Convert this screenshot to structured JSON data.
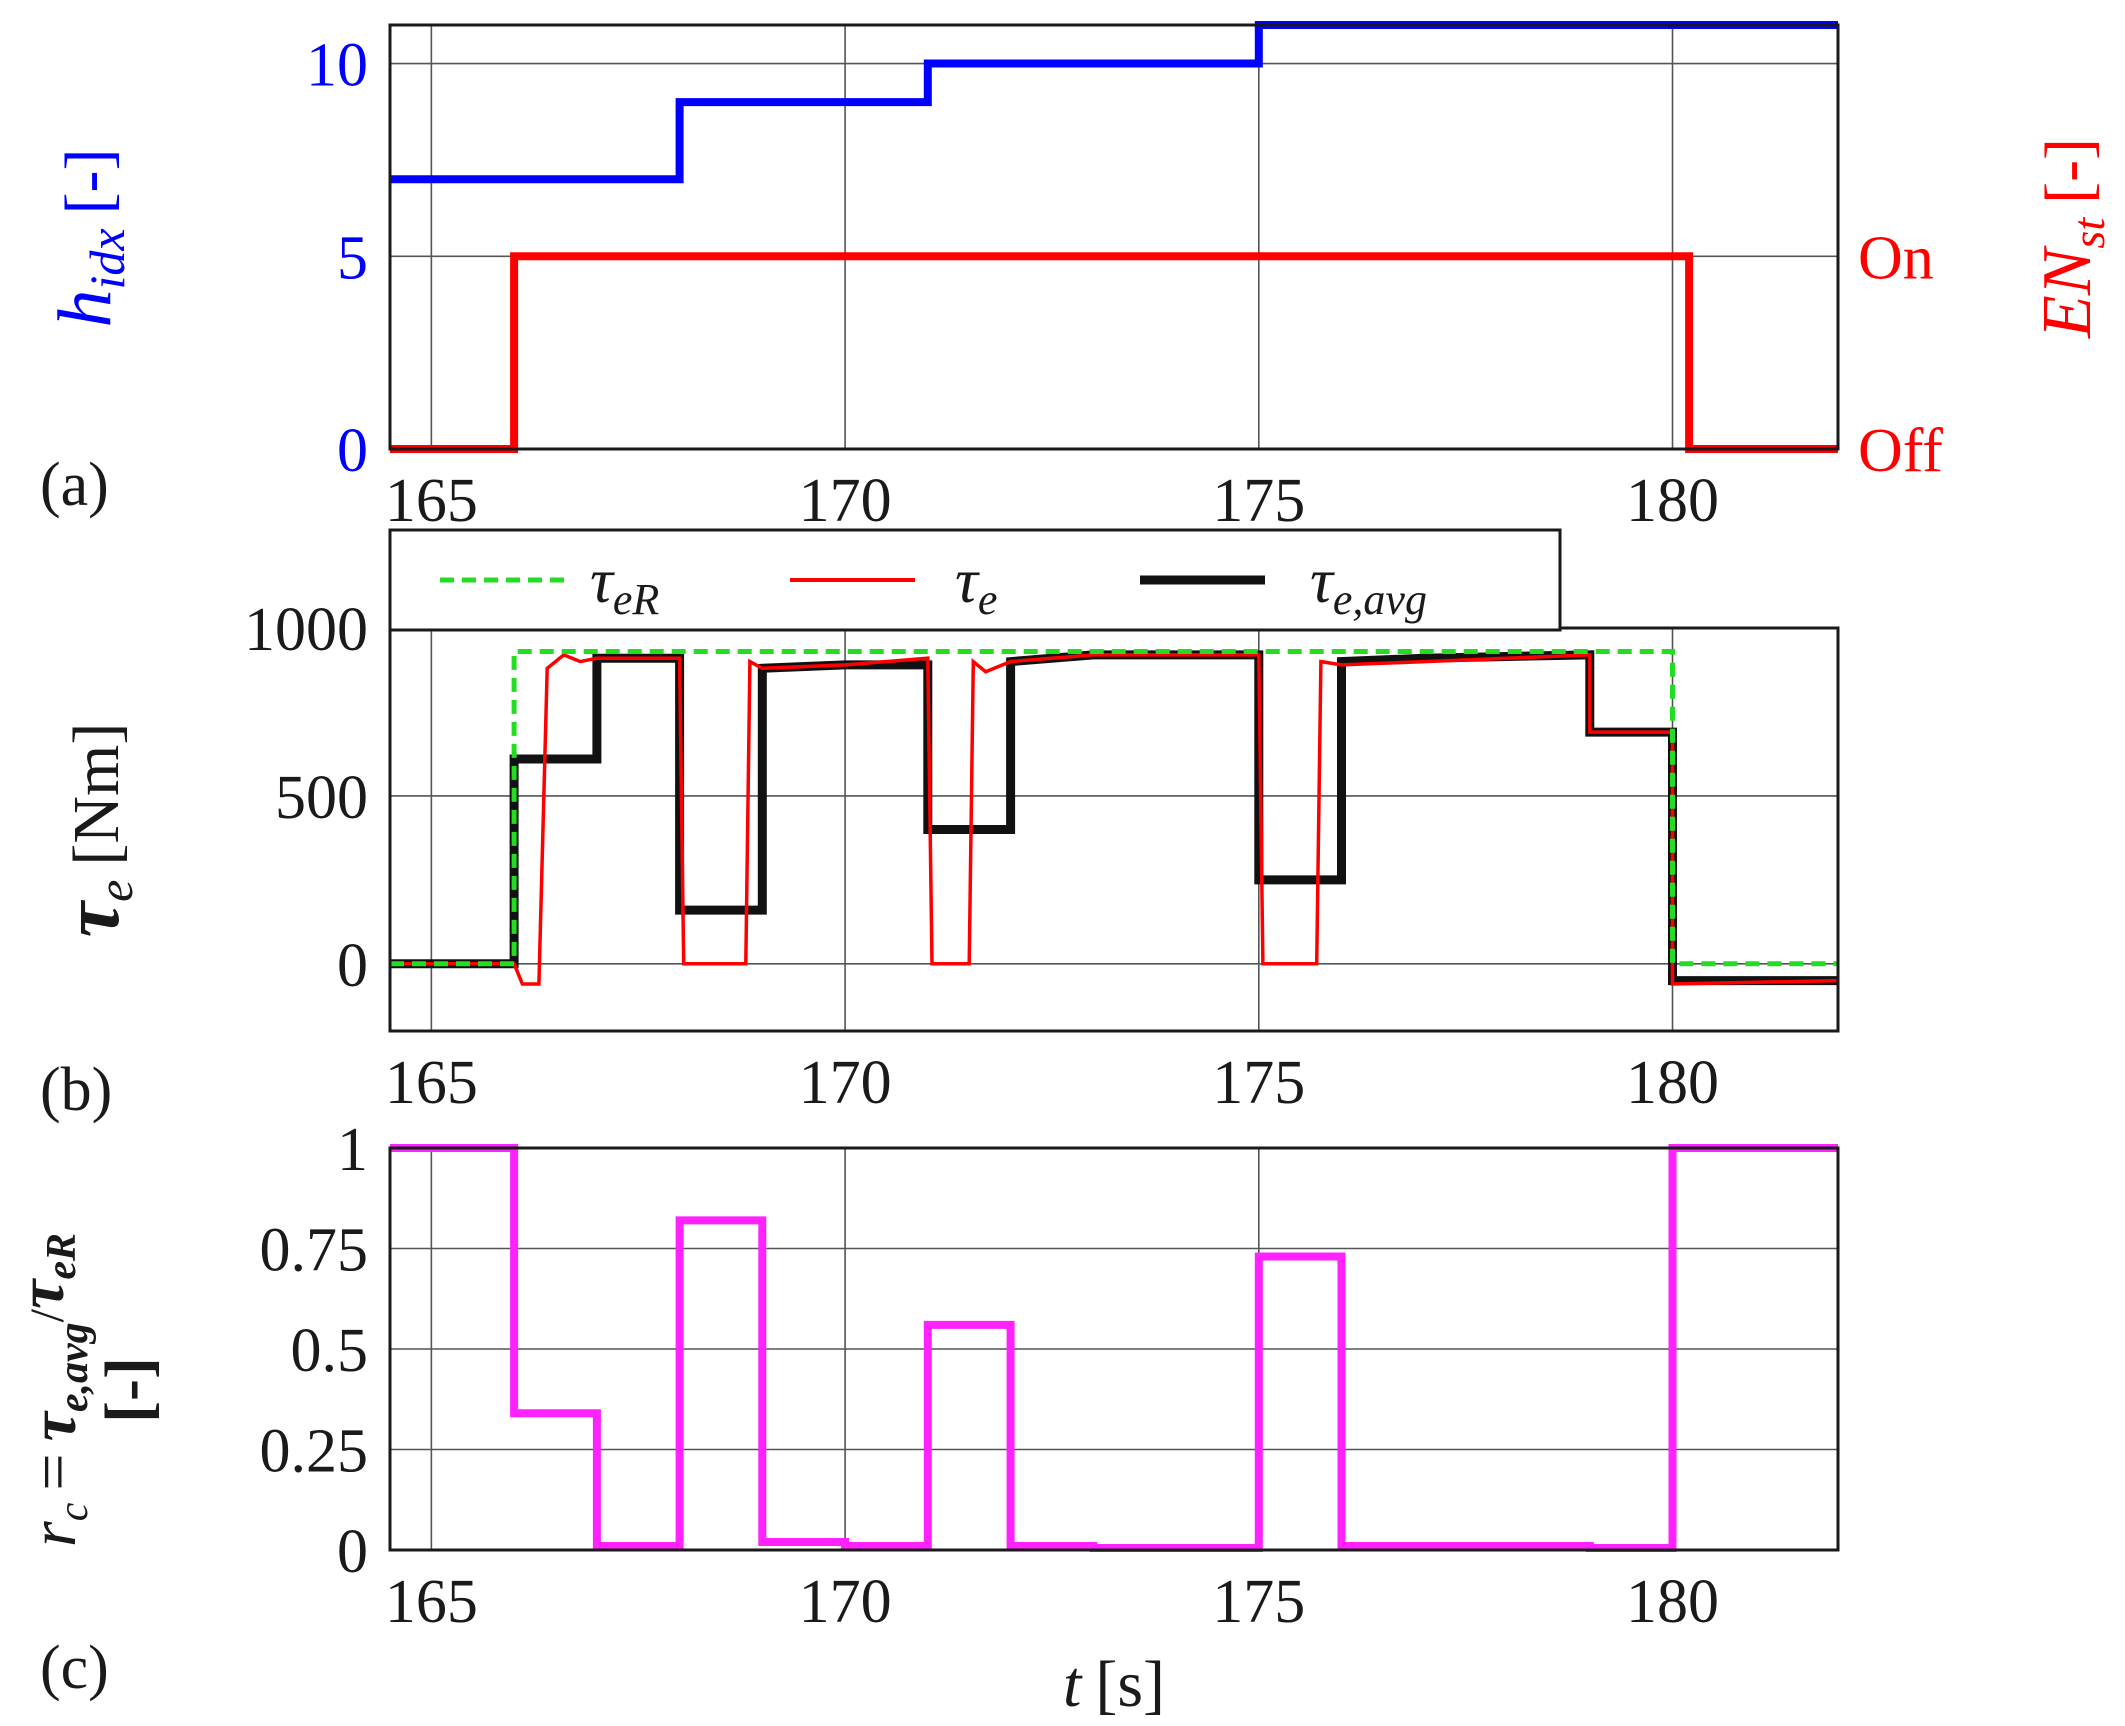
{
  "chart_data": [
    {
      "panel": "(a)",
      "type": "line",
      "xlabel": "",
      "ylabel": "h_idx [-]",
      "ylabel_parts": {
        "sym": "h",
        "sub": "idx",
        "unit": "[-]"
      },
      "y2label": "EN_st [-]",
      "y2label_parts": {
        "sym": "EN",
        "sub": "st",
        "unit": "[-]"
      },
      "xlim": [
        164.5,
        182
      ],
      "ylim": [
        0,
        11
      ],
      "xticks": [
        165,
        170,
        175,
        180
      ],
      "yticks": [
        0,
        5,
        10
      ],
      "y2ticks": [
        "Off",
        "On"
      ],
      "grid": true,
      "colors": {
        "h_idx": "#0000ff",
        "EN_st": "#ff0000",
        "right_axis": "#ff8c00"
      },
      "series": [
        {
          "id": "h_idx",
          "step": true,
          "x": [
            164.5,
            168,
            171,
            175,
            182
          ],
          "y": [
            7,
            9,
            10,
            11,
            11
          ]
        },
        {
          "id": "EN_st",
          "step": true,
          "x": [
            164.5,
            166,
            180.2,
            182
          ],
          "y": [
            0,
            5,
            0,
            0
          ]
        }
      ]
    },
    {
      "panel": "(b)",
      "type": "line",
      "xlabel": "",
      "ylabel": "τe [Nm]",
      "ylabel_parts": {
        "sym": "τ",
        "sub": "e",
        "unit": "[Nm]"
      },
      "xlim": [
        164.5,
        182
      ],
      "ylim": [
        -200,
        1000
      ],
      "xticks": [
        165,
        170,
        175,
        180
      ],
      "yticks": [
        0,
        500,
        1000
      ],
      "grid": true,
      "legend_position": "top",
      "legend": [
        {
          "sym": "τ",
          "sub": "eR",
          "color": "#22dd22",
          "style": "dashed"
        },
        {
          "sym": "τ",
          "sub": "e",
          "color": "#ff0000",
          "style": "solid"
        },
        {
          "sym": "τ",
          "sub": "e,avg",
          "color": "#111111",
          "style": "solid"
        }
      ],
      "series": [
        {
          "id": "tau_eR",
          "color": "#22dd22",
          "style": "dashed",
          "x": [
            164.5,
            166,
            166,
            180,
            180,
            182
          ],
          "y": [
            0,
            0,
            930,
            930,
            0,
            0
          ]
        },
        {
          "id": "tau_e",
          "color": "#ff0000",
          "style": "solid",
          "x": [
            164.5,
            166,
            166.1,
            166.3,
            166.4,
            166.6,
            166.8,
            167,
            168,
            168.05,
            168.1,
            168.8,
            168.85,
            169,
            170,
            171,
            171.05,
            171.1,
            171.5,
            171.55,
            171.7,
            172,
            173,
            175,
            175.05,
            175.1,
            175.7,
            175.75,
            176,
            177,
            178,
            179,
            179,
            180,
            180,
            182
          ],
          "y": [
            0,
            0,
            -60,
            -60,
            880,
            920,
            900,
            910,
            910,
            0,
            0,
            0,
            900,
            880,
            890,
            910,
            0,
            0,
            0,
            900,
            870,
            900,
            920,
            920,
            0,
            0,
            0,
            900,
            890,
            900,
            910,
            920,
            690,
            690,
            -60,
            -50
          ]
        },
        {
          "id": "tau_e_avg",
          "color": "#111111",
          "style": "solid",
          "x": [
            164.5,
            166,
            166,
            167,
            167,
            168,
            168,
            169,
            169,
            170,
            171,
            171,
            172,
            172,
            173,
            175,
            175,
            176,
            176,
            177,
            178,
            179,
            179,
            180,
            180,
            182
          ],
          "y": [
            0,
            0,
            610,
            610,
            910,
            910,
            160,
            160,
            880,
            890,
            890,
            400,
            400,
            900,
            920,
            920,
            250,
            250,
            900,
            910,
            915,
            920,
            690,
            690,
            -50,
            -50
          ]
        }
      ]
    },
    {
      "panel": "(c)",
      "type": "line",
      "xlabel": "t [s]",
      "xlabel_parts": {
        "sym": "t",
        "unit": "[s]"
      },
      "ylabel": "r_c = τ_e,avg/τ_eR [-]",
      "ylabel_parts": {
        "sym": "r",
        "sub": "c",
        "eq": "=",
        "num_sym": "τ",
        "num_sub": "e,avg",
        "den_sym": "τ",
        "den_sub": "eR",
        "unit": "[-]"
      },
      "xlim": [
        164.5,
        182
      ],
      "ylim": [
        0,
        1
      ],
      "xticks": [
        165,
        170,
        175,
        180
      ],
      "yticks": [
        "0",
        "0.25",
        "0.5",
        "0.75",
        "1"
      ],
      "grid": true,
      "colors": {
        "r_c": "#ff22ff"
      },
      "series": [
        {
          "id": "r_c",
          "step": true,
          "x": [
            164.5,
            166,
            167,
            168,
            169,
            170,
            171,
            172,
            173,
            175,
            176,
            177,
            179,
            180,
            182
          ],
          "y": [
            1,
            0.34,
            0.01,
            0.82,
            0.02,
            0.01,
            0.56,
            0.01,
            0.005,
            0.73,
            0.01,
            0.01,
            0.005,
            1,
            1
          ]
        }
      ]
    }
  ]
}
